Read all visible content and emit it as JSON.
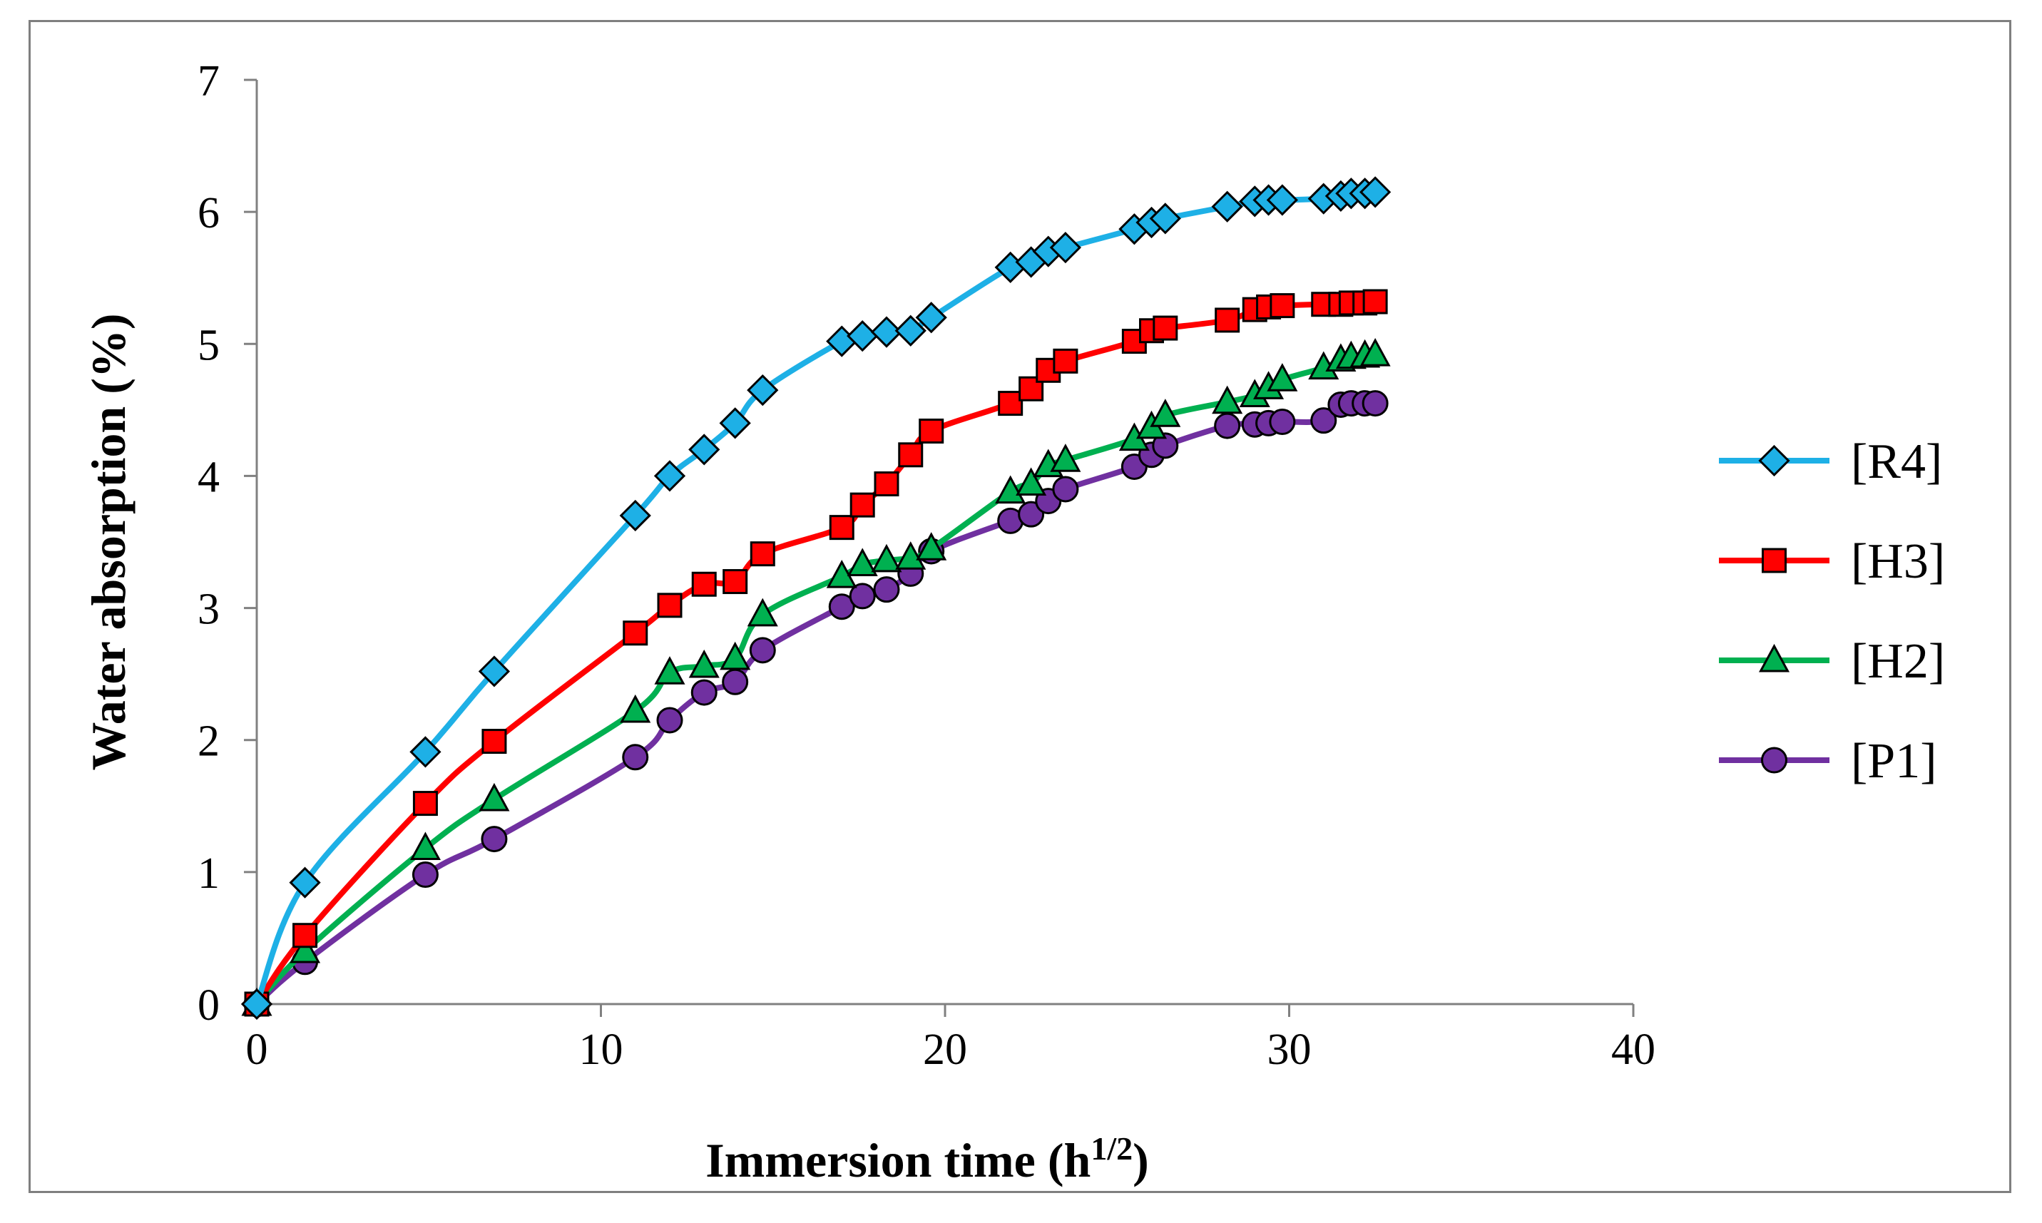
{
  "chart_data": {
    "type": "line",
    "title": "",
    "xlabel": "Immersion time",
    "xlabel_unit_base": "h",
    "xlabel_unit_sup": "1/2",
    "xlabel_close": ")",
    "ylabel": "Water absorption (%)",
    "xlim": [
      0,
      40
    ],
    "ylim": [
      0,
      7
    ],
    "xticks": [
      0,
      10,
      20,
      30,
      40
    ],
    "yticks": [
      0,
      1,
      2,
      3,
      4,
      5,
      6,
      7
    ],
    "grid": false,
    "legend_position": "right",
    "x": [
      0,
      1.4,
      4.9,
      6.9,
      11,
      12,
      13,
      13.9,
      14.7,
      17,
      17.6,
      18.3,
      19,
      19.6,
      21.9,
      22.5,
      23,
      23.5,
      25.5,
      26,
      26.4,
      28.2,
      29,
      29.4,
      29.8,
      31,
      31.5,
      31.8,
      32.2,
      32.5
    ],
    "series": [
      {
        "name": "[R4]",
        "color": "#1eb0e6",
        "marker": "diamond",
        "values": [
          0,
          0.92,
          1.91,
          2.52,
          3.7,
          4.0,
          4.2,
          4.4,
          4.65,
          5.02,
          5.06,
          5.09,
          5.1,
          5.2,
          5.58,
          5.62,
          5.7,
          5.73,
          5.87,
          5.92,
          5.95,
          6.04,
          6.08,
          6.09,
          6.09,
          6.1,
          6.12,
          6.14,
          6.14,
          6.15
        ]
      },
      {
        "name": "[H3]",
        "color": "#ff0000",
        "marker": "square",
        "values": [
          0,
          0.52,
          1.52,
          1.99,
          2.81,
          3.02,
          3.18,
          3.2,
          3.41,
          3.61,
          3.78,
          3.94,
          4.16,
          4.34,
          4.55,
          4.66,
          4.8,
          4.87,
          5.02,
          5.1,
          5.12,
          5.18,
          5.26,
          5.28,
          5.29,
          5.3,
          5.3,
          5.31,
          5.31,
          5.32
        ]
      },
      {
        "name": "[H2]",
        "color": "#00b050",
        "marker": "triangle",
        "values": [
          0,
          0.4,
          1.18,
          1.55,
          2.22,
          2.51,
          2.56,
          2.62,
          2.95,
          3.24,
          3.33,
          3.36,
          3.38,
          3.45,
          3.88,
          3.94,
          4.08,
          4.12,
          4.28,
          4.37,
          4.46,
          4.56,
          4.61,
          4.67,
          4.73,
          4.82,
          4.88,
          4.9,
          4.91,
          4.92
        ]
      },
      {
        "name": "[P1]",
        "color": "#7030a0",
        "marker": "circle",
        "values": [
          0,
          0.32,
          0.98,
          1.25,
          1.87,
          2.15,
          2.36,
          2.44,
          2.68,
          3.01,
          3.09,
          3.14,
          3.26,
          3.43,
          3.66,
          3.71,
          3.81,
          3.9,
          4.07,
          4.16,
          4.23,
          4.38,
          4.39,
          4.4,
          4.41,
          4.42,
          4.54,
          4.55,
          4.55,
          4.55
        ]
      }
    ]
  }
}
